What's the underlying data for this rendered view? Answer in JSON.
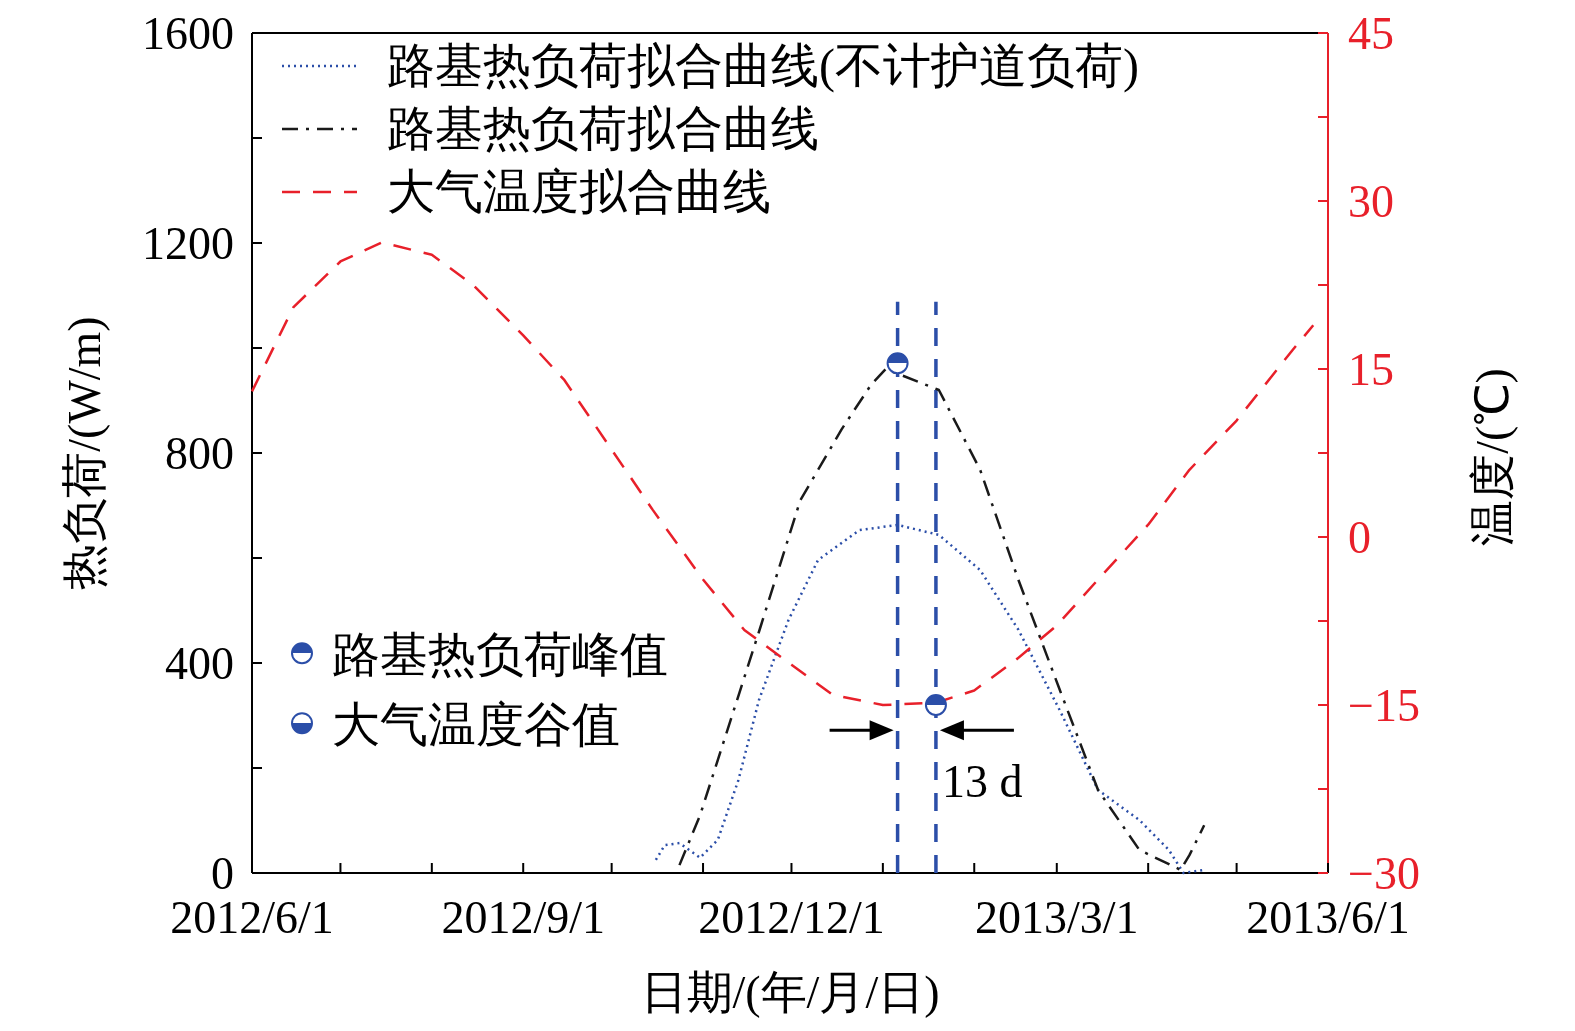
{
  "chart_data": {
    "type": "line",
    "xlabel": "日期/(年/月/日)",
    "ylabel": "热负荷/(W/m)",
    "y2label": "温度/(℃)",
    "xlim": [
      "2012-06-01",
      "2013-06-01"
    ],
    "xticks": [
      {
        "value": "2012-06-01",
        "label": "2012/6/1"
      },
      {
        "value": "2012-07-01",
        "label": null
      },
      {
        "value": "2012-08-01",
        "label": null
      },
      {
        "value": "2012-09-01",
        "label": "2012/9/1"
      },
      {
        "value": "2012-10-01",
        "label": null
      },
      {
        "value": "2012-11-01",
        "label": null
      },
      {
        "value": "2012-12-01",
        "label": "2012/12/1"
      },
      {
        "value": "2013-01-01",
        "label": null
      },
      {
        "value": "2013-02-01",
        "label": null
      },
      {
        "value": "2013-03-01",
        "label": "2013/3/1"
      },
      {
        "value": "2013-04-01",
        "label": null
      },
      {
        "value": "2013-05-01",
        "label": null
      },
      {
        "value": "2013-06-01",
        "label": "2013/6/1"
      }
    ],
    "ylim": [
      0,
      1600
    ],
    "yticks": [
      0,
      {
        "value": 200,
        "label": null
      },
      400,
      {
        "value": 600,
        "label": null
      },
      800,
      {
        "value": 1000,
        "label": null
      },
      1200,
      {
        "value": 1400,
        "label": null
      },
      1600
    ],
    "y2lim": [
      -30,
      45
    ],
    "y2ticks": [
      {
        "value": -30,
        "label": "−30"
      },
      {
        "value": -22.5,
        "label": null
      },
      {
        "value": -15,
        "label": "−15"
      },
      {
        "value": -7.5,
        "label": null
      },
      0,
      {
        "value": 7.5,
        "label": null
      },
      15,
      {
        "value": 22.5,
        "label": null
      },
      30,
      {
        "value": 37.5,
        "label": null
      },
      45
    ],
    "grid": false,
    "legend": "top left",
    "series": [
      {
        "name": "路基热负荷拟合曲线(不计护道负荷)",
        "color": "#2b4ea8",
        "line_style": "dotted",
        "x": [
          "2012-10-16",
          "2012-10-19",
          "2012-10-24",
          "2012-10-31",
          "2012-11-06",
          "2012-11-13",
          "2012-11-20",
          "2012-11-30",
          "2012-12-10",
          "2012-12-24",
          "2013-01-06",
          "2013-01-20",
          "2013-02-03",
          "2013-02-16",
          "2013-03-02",
          "2013-03-15",
          "2013-03-29",
          "2013-04-08",
          "2013-04-13",
          "2013-04-20"
        ],
        "values": [
          25,
          53,
          57,
          29,
          63,
          177,
          330,
          482,
          596,
          653,
          663,
          644,
          577,
          463,
          310,
          158,
          101,
          44,
          0,
          6
        ]
      },
      {
        "name": "路基热负荷拟合曲线",
        "color": "#1a1a1a",
        "line_style": "dashdot",
        "x": [
          "2012-10-24",
          "2012-10-31",
          "2012-11-06",
          "2012-11-20",
          "2012-12-04",
          "2012-12-18",
          "2012-12-28",
          "2013-01-02",
          "2013-01-20",
          "2013-02-03",
          "2013-02-16",
          "2013-03-02",
          "2013-03-15",
          "2013-03-29",
          "2013-04-12",
          "2013-04-15",
          "2013-04-20"
        ],
        "values": [
          15,
          110,
          215,
          460,
          710,
          845,
          930,
          960,
          920,
          768,
          558,
          349,
          158,
          44,
          6,
          34,
          91
        ]
      },
      {
        "name": "大气温度拟合曲线",
        "color": "#e8202a",
        "line_style": "dashed",
        "axis": "y2",
        "x": [
          "2012-06-01",
          "2012-06-15",
          "2012-07-01",
          "2012-07-15",
          "2012-08-01",
          "2012-08-15",
          "2012-09-01",
          "2012-09-15",
          "2012-10-01",
          "2012-10-15",
          "2012-11-01",
          "2012-11-15",
          "2012-12-01",
          "2012-12-15",
          "2013-01-01",
          "2013-01-19",
          "2013-02-01",
          "2013-02-15",
          "2013-03-01",
          "2013-03-15",
          "2013-04-01",
          "2013-04-15",
          "2013-05-01",
          "2013-05-20",
          "2013-05-27"
        ],
        "values": [
          13,
          20.5,
          24.6,
          26.3,
          25.2,
          22.5,
          18,
          14,
          7.8,
          2.4,
          -3.8,
          -8.3,
          -11.4,
          -14.1,
          -15,
          -14.8,
          -13.7,
          -11,
          -7.9,
          -3.8,
          1.1,
          6,
          10.4,
          16.7,
          18.9
        ]
      },
      {
        "name": "路基热负荷峰值",
        "type": "scatter",
        "marker": "circle",
        "color": "#2b4ea8",
        "x": [
          "2013-01-06"
        ],
        "values": [
          971
        ]
      },
      {
        "name": "大气温度谷值",
        "type": "scatter",
        "marker": "circle",
        "color": "#2b4ea8",
        "axis": "y2",
        "x": [
          "2013-01-19"
        ],
        "values": [
          -15
        ]
      }
    ],
    "ref_lines": [
      {
        "axis": "x",
        "value": "2013-01-06",
        "color": "#2b4ea8",
        "line_style": "dashed"
      },
      {
        "axis": "x",
        "value": "2013-01-19",
        "color": "#2b4ea8",
        "line_style": "dashed"
      }
    ],
    "annotations": [
      "13 d"
    ]
  }
}
